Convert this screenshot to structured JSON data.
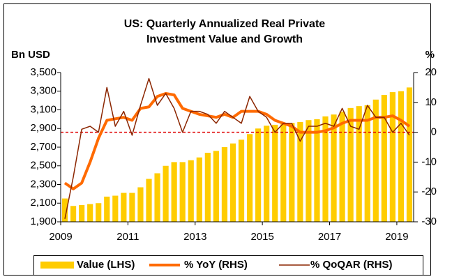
{
  "chart_data": {
    "type": "bar-line",
    "title": [
      "US: Quarterly Annualized Real Private",
      "Investment Value and Growth"
    ],
    "y_label": "Bn USD",
    "y2_label": "%",
    "categories": [
      "2009",
      null,
      null,
      null,
      null,
      null,
      null,
      null,
      "2011",
      null,
      null,
      null,
      null,
      null,
      null,
      null,
      "2013",
      null,
      null,
      null,
      null,
      null,
      null,
      null,
      "2015",
      null,
      null,
      null,
      null,
      null,
      null,
      null,
      "2017",
      null,
      null,
      null,
      null,
      null,
      null,
      null,
      "2019",
      null
    ],
    "ylim": [
      1900,
      3500
    ],
    "yticks": [
      {
        "value": 1900,
        "label": "1,900"
      },
      {
        "value": 2100,
        "label": "2,100"
      },
      {
        "value": 2300,
        "label": "2,300"
      },
      {
        "value": 2500,
        "label": "2,500"
      },
      {
        "value": 2700,
        "label": "2,700"
      },
      {
        "value": 2900,
        "label": "2,900"
      },
      {
        "value": 3100,
        "label": "3,100"
      },
      {
        "value": 3300,
        "label": "3,300"
      },
      {
        "value": 3500,
        "label": "3,500"
      }
    ],
    "y2lim": [
      -30,
      20
    ],
    "y2ticks": [
      -30,
      -20,
      -10,
      0,
      10,
      20
    ],
    "reference_line": {
      "axis": "y2",
      "value": 0,
      "color": "#e00000",
      "dashed": true
    },
    "legend": "bottom",
    "series": [
      {
        "name": "Value (LHS)",
        "kind": "bar",
        "color": "#ffcc00",
        "values": [
          2150,
          2070,
          2080,
          2090,
          2100,
          2170,
          2180,
          2210,
          2210,
          2270,
          2360,
          2420,
          2500,
          2540,
          2540,
          2560,
          2590,
          2640,
          2660,
          2700,
          2740,
          2780,
          2840,
          2900,
          2930,
          2940,
          2950,
          2960,
          2970,
          2990,
          3000,
          3030,
          3050,
          3080,
          3120,
          3140,
          3150,
          3210,
          3260,
          3290,
          3300,
          3340
        ]
      },
      {
        "name": "% YoY (RHS)",
        "kind": "line",
        "axis": "y2",
        "color": "#ff6a00",
        "width": 4,
        "values": [
          -17,
          -19,
          -17,
          -10,
          -2,
          4,
          4.5,
          5,
          4,
          8,
          8.5,
          12,
          13,
          12.5,
          8,
          7,
          6,
          5.5,
          5,
          6,
          5,
          7,
          7,
          7,
          6,
          4,
          3,
          2,
          0,
          0,
          0,
          0.5,
          1.5,
          3,
          4,
          4,
          4,
          5,
          5,
          5.5,
          4,
          2
        ]
      },
      {
        "name": "% QoQAR (RHS)",
        "kind": "line",
        "axis": "y2",
        "color": "#8b2500",
        "width": 1.5,
        "values": [
          -29,
          -15,
          1,
          2,
          0,
          15,
          2,
          7,
          -1,
          9,
          18,
          9,
          13,
          8,
          0,
          7,
          7,
          6,
          3,
          7,
          5,
          3,
          12,
          7,
          5,
          0,
          3,
          3,
          -3,
          2,
          2,
          3,
          2,
          8,
          2,
          1,
          9,
          5,
          5,
          0,
          3,
          -1
        ]
      }
    ]
  }
}
